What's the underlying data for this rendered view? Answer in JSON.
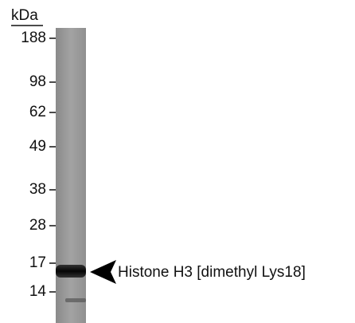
{
  "unit": "kDa",
  "markers": [
    188,
    98,
    62,
    49,
    38,
    28,
    17,
    14
  ],
  "band_label": "Histone H3 [dimethyl Lys18]"
}
